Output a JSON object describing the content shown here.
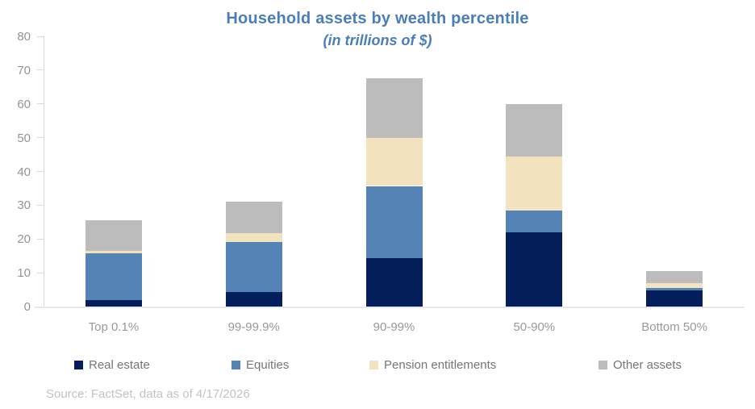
{
  "header": {
    "title": "Household assets by wealth percentile",
    "subtitle": "(in trillions of $)"
  },
  "footer": {
    "source": "Source: FactSet, data as of 4/17/2026"
  },
  "colors": {
    "title_text": "#4a7ebb",
    "real_estate": "#041e5b",
    "equities": "#5384b5",
    "pension_entitlements": "#f2e2bd",
    "other_assets": "#bcbcbc",
    "axis_text": "#949494",
    "legend_text": "#757575",
    "source_text": "#c3c3c3",
    "axis_line": "#d9d9d9"
  },
  "chart_data": {
    "type": "bar",
    "stacked": true,
    "title": "Household assets by wealth percentile",
    "subtitle": "(in trillions of $)",
    "xlabel": "",
    "ylabel": "",
    "categories": [
      "Top 0.1%",
      "99-99.9%",
      "90-99%",
      "50-90%",
      "Bottom 50%"
    ],
    "series": [
      {
        "name": "Real estate",
        "color": "#041e5b",
        "values": [
          1.8,
          4.4,
          14.4,
          22.0,
          4.7
        ]
      },
      {
        "name": "Equities",
        "color": "#5384b5",
        "values": [
          14.0,
          14.7,
          21.3,
          6.5,
          0.9
        ]
      },
      {
        "name": "Pension entitlements",
        "color": "#f2e2bd",
        "values": [
          0.6,
          2.6,
          14.2,
          16.0,
          1.4
        ]
      },
      {
        "name": "Other assets",
        "color": "#bcbcbc",
        "values": [
          9.2,
          9.4,
          17.8,
          15.5,
          3.4
        ]
      }
    ],
    "stack_totals": [
      25.6,
      31.1,
      67.7,
      60.0,
      10.4
    ],
    "y_axis": {
      "min": 0,
      "max": 80,
      "tick_interval": 10,
      "ticks": [
        0,
        10,
        20,
        30,
        40,
        50,
        60,
        70,
        80
      ]
    },
    "grid": false,
    "legend_position": "bottom"
  }
}
